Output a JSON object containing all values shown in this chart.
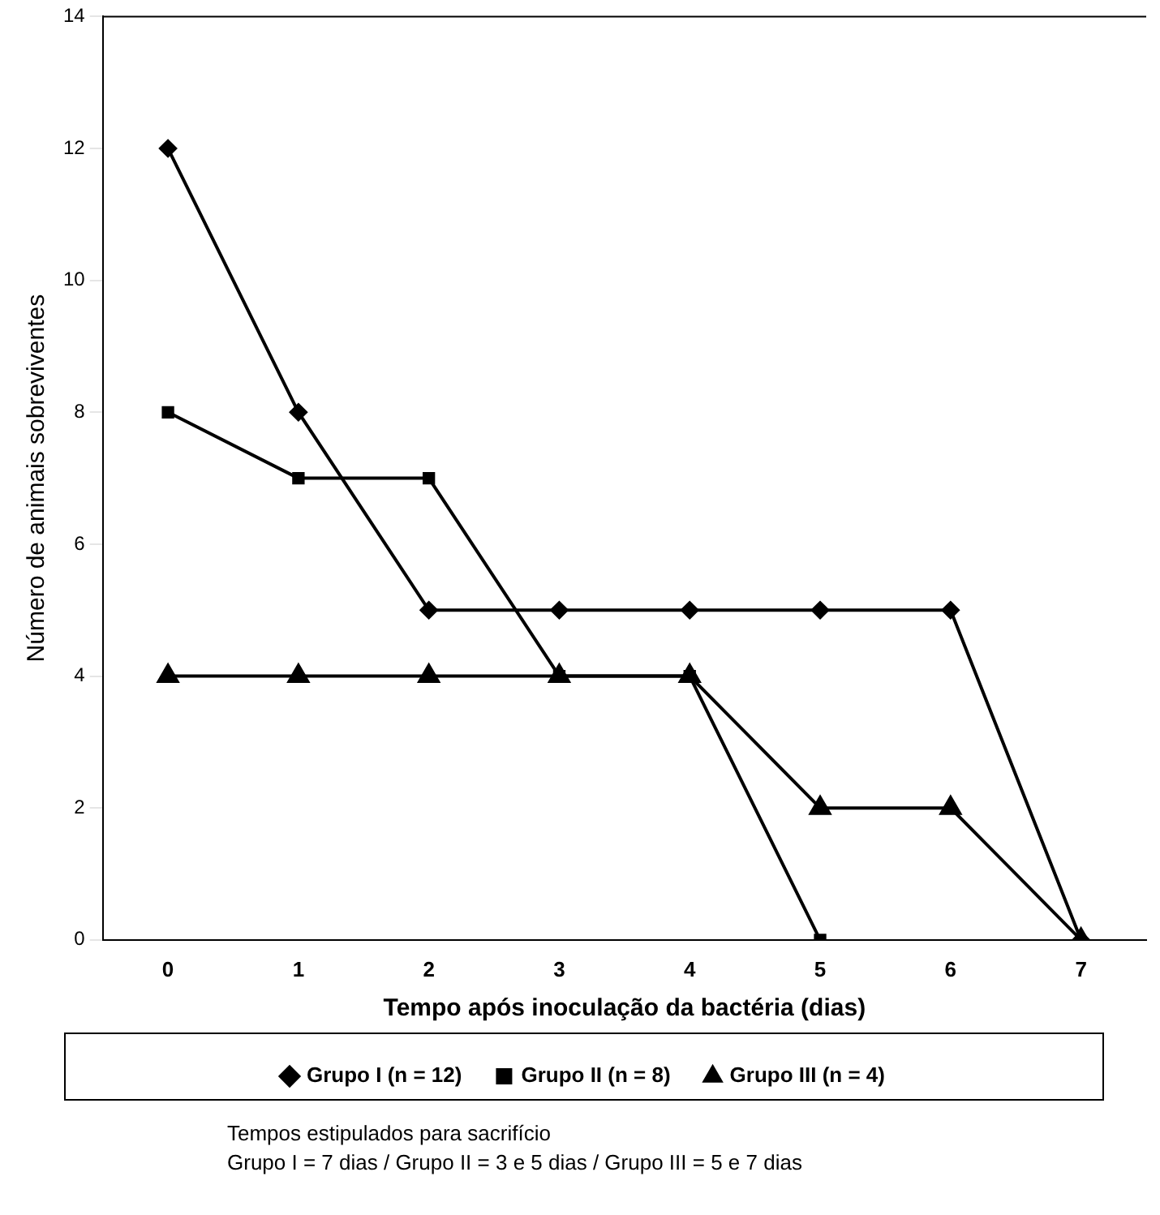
{
  "chart_data": {
    "type": "line",
    "xlabel": "Tempo após inoculação da bactéria (dias)",
    "ylabel": "Número de animais sobreviventes",
    "categories": [
      "0",
      "1",
      "2",
      "3",
      "4",
      "5",
      "6",
      "7"
    ],
    "series": [
      {
        "name": "Grupo I (n = 12)",
        "color": "#000000",
        "marker": "diamond",
        "values": [
          12,
          8,
          5,
          5,
          5,
          5,
          5,
          0
        ]
      },
      {
        "name": "Grupo II (n = 8)",
        "color": "#000000",
        "marker": "square",
        "values": [
          8,
          7,
          7,
          4,
          4,
          0,
          null,
          null
        ]
      },
      {
        "name": "Grupo III (n = 4)",
        "color": "#000000",
        "marker": "triangle",
        "values": [
          4,
          4,
          4,
          4,
          4,
          2,
          2,
          0
        ]
      }
    ],
    "ylim": [
      0,
      14
    ],
    "yticks": [
      0,
      2,
      4,
      6,
      8,
      10,
      12,
      14
    ],
    "grid": false,
    "legend": "bottom",
    "line_style": "solid",
    "annotations": [
      "Tempos estipulados para sacrifício",
      "Grupo I = 7 dias   /   Grupo II = 3 e 5 dias   /   Grupo III = 5 e 7 dias"
    ]
  }
}
